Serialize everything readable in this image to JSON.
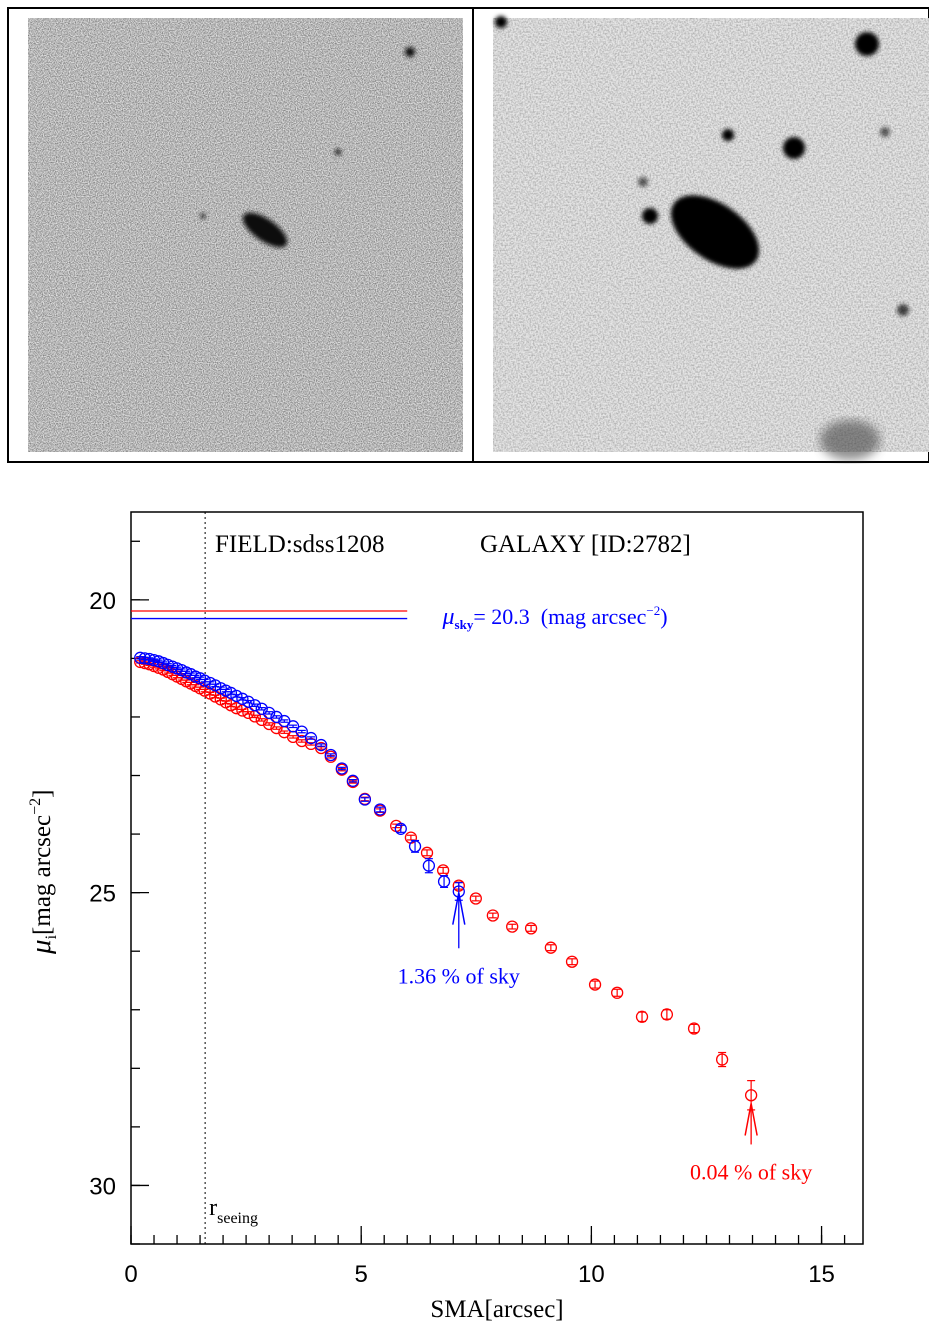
{
  "chart_data": {
    "type": "scatter",
    "title": "FIELD:sdss1208",
    "subtitle": "GALAXY [ID:2782]",
    "xlabel": "SMA[arcsec]",
    "ylabel": {
      "symbol": "μ",
      "sub": "i",
      "text": "[mag arcsec",
      "sup": "−2",
      "close": "]"
    },
    "xlim": [
      0,
      15.9
    ],
    "ylim": [
      18.5,
      31
    ],
    "y_inverted": true,
    "xticks": [
      0,
      5,
      10,
      15
    ],
    "yticks": [
      20,
      25,
      30
    ],
    "x_minor_step": 0.5,
    "y_minor_step": 1,
    "seeing": {
      "x": 1.61,
      "label": "r",
      "sub": "seeing"
    },
    "sky_lines": [
      {
        "value": 20.19,
        "xmax": 6.0,
        "color": "#ff0000"
      },
      {
        "value": 20.32,
        "xmax": 6.0,
        "color": "#0000ff"
      }
    ],
    "sky_label": {
      "symbol": "μ",
      "sub": "sky",
      "text": "= 20.3  (mag arcsec",
      "sup": "−2",
      "close": ")",
      "color": "#0000ff"
    },
    "arrows": [
      {
        "x": 7.12,
        "from": 25.95,
        "to": 25.0,
        "color": "#0000ff",
        "label": "1.36 % of sky"
      },
      {
        "x": 13.47,
        "from": 29.3,
        "to": 28.6,
        "color": "#ff0000",
        "label": "0.04 % of sky"
      }
    ],
    "series": [
      {
        "color": "#ff0000",
        "x": [
          0.2,
          0.3,
          0.4,
          0.5,
          0.6,
          0.7,
          0.8,
          0.9,
          1.0,
          1.1,
          1.2,
          1.3,
          1.4,
          1.5,
          1.6,
          1.72,
          1.83,
          1.95,
          2.06,
          2.17,
          2.29,
          2.42,
          2.55,
          2.69,
          2.84,
          3.0,
          3.16,
          3.33,
          3.52,
          3.71,
          3.91,
          4.13,
          4.34,
          4.58,
          4.82,
          5.08,
          5.41,
          5.76,
          6.08,
          6.43,
          6.78,
          7.12,
          7.49,
          7.86,
          8.28,
          8.69,
          9.12,
          9.58,
          10.08,
          10.56,
          11.1,
          11.64,
          12.23,
          12.84,
          13.47
        ],
        "values": [
          21.06,
          21.08,
          21.1,
          21.13,
          21.16,
          21.19,
          21.23,
          21.27,
          21.31,
          21.35,
          21.39,
          21.43,
          21.47,
          21.51,
          21.55,
          21.6,
          21.65,
          21.7,
          21.75,
          21.8,
          21.85,
          21.89,
          21.93,
          21.99,
          22.05,
          22.12,
          22.19,
          22.26,
          22.34,
          22.41,
          22.46,
          22.53,
          22.68,
          22.9,
          23.11,
          23.4,
          23.6,
          23.86,
          24.06,
          24.32,
          24.62,
          24.88,
          25.1,
          25.39,
          25.58,
          25.61,
          25.94,
          26.18,
          26.57,
          26.71,
          27.12,
          27.08,
          27.32,
          27.85,
          28.46
        ],
        "errors": [
          0.02,
          0.02,
          0.02,
          0.02,
          0.02,
          0.02,
          0.02,
          0.02,
          0.02,
          0.02,
          0.02,
          0.02,
          0.02,
          0.02,
          0.02,
          0.02,
          0.02,
          0.02,
          0.02,
          0.02,
          0.02,
          0.02,
          0.02,
          0.02,
          0.02,
          0.02,
          0.02,
          0.02,
          0.02,
          0.02,
          0.02,
          0.02,
          0.02,
          0.02,
          0.02,
          0.03,
          0.03,
          0.03,
          0.04,
          0.05,
          0.05,
          0.06,
          0.04,
          0.04,
          0.04,
          0.05,
          0.05,
          0.05,
          0.06,
          0.06,
          0.08,
          0.08,
          0.07,
          0.12,
          0.25
        ]
      },
      {
        "color": "#0000ff",
        "x": [
          0.2,
          0.3,
          0.4,
          0.5,
          0.6,
          0.7,
          0.8,
          0.9,
          1.0,
          1.1,
          1.2,
          1.3,
          1.4,
          1.5,
          1.6,
          1.72,
          1.83,
          1.95,
          2.06,
          2.17,
          2.29,
          2.42,
          2.55,
          2.69,
          2.84,
          3.0,
          3.16,
          3.33,
          3.52,
          3.71,
          3.91,
          4.13,
          4.34,
          4.58,
          4.82,
          5.08,
          5.41,
          5.86,
          6.17,
          6.47,
          6.8,
          7.12
        ],
        "values": [
          20.99,
          21.0,
          21.01,
          21.03,
          21.05,
          21.08,
          21.11,
          21.14,
          21.17,
          21.2,
          21.24,
          21.27,
          21.31,
          21.34,
          21.38,
          21.42,
          21.46,
          21.51,
          21.55,
          21.59,
          21.64,
          21.69,
          21.74,
          21.8,
          21.86,
          21.93,
          22.0,
          22.07,
          22.16,
          22.25,
          22.36,
          22.48,
          22.65,
          22.88,
          23.09,
          23.41,
          23.58,
          23.91,
          24.21,
          24.54,
          24.81,
          24.98
        ],
        "errors": [
          0.02,
          0.02,
          0.02,
          0.02,
          0.02,
          0.02,
          0.02,
          0.02,
          0.02,
          0.02,
          0.02,
          0.02,
          0.02,
          0.02,
          0.02,
          0.02,
          0.02,
          0.02,
          0.02,
          0.02,
          0.02,
          0.02,
          0.02,
          0.02,
          0.02,
          0.02,
          0.02,
          0.02,
          0.02,
          0.02,
          0.02,
          0.02,
          0.02,
          0.02,
          0.02,
          0.03,
          0.04,
          0.06,
          0.1,
          0.12,
          0.1,
          0.15
        ]
      }
    ]
  }
}
